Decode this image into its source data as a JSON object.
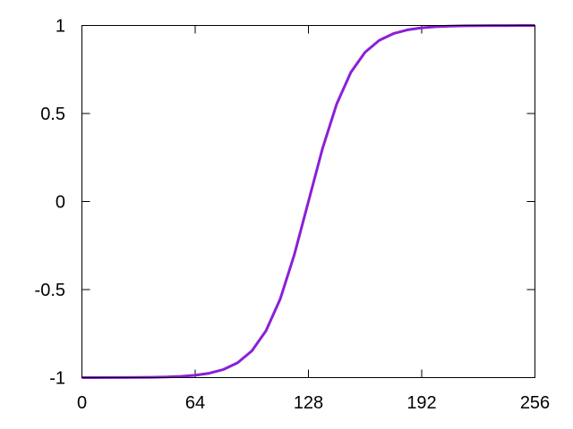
{
  "chart_data": {
    "type": "line",
    "title": "",
    "xlabel": "",
    "ylabel": "",
    "xlim": [
      0,
      256
    ],
    "ylim": [
      -1,
      1
    ],
    "grid": false,
    "xticks": [
      "0",
      "64",
      "128",
      "192",
      "256"
    ],
    "yticks": [
      "-1",
      "-0.5",
      "0",
      "0.5",
      "1"
    ],
    "xtick_values": [
      0,
      64,
      128,
      192,
      256
    ],
    "ytick_values": [
      -1,
      -0.5,
      0,
      0.5,
      1
    ],
    "series": [
      {
        "color": "#8b1fd6",
        "x": [
          0,
          8,
          16,
          24,
          32,
          40,
          48,
          56,
          64,
          72,
          80,
          88,
          96,
          104,
          112,
          120,
          128,
          136,
          144,
          152,
          160,
          168,
          176,
          184,
          192,
          200,
          208,
          216,
          224,
          232,
          240,
          248,
          256
        ],
        "y": [
          -0.9999,
          -0.9998,
          -0.9997,
          -0.9994,
          -0.9989,
          -0.9979,
          -0.9962,
          -0.9928,
          -0.9866,
          -0.975,
          -0.9539,
          -0.9159,
          -0.8483,
          -0.7342,
          -0.5546,
          -0.3027,
          0,
          0.3027,
          0.5546,
          0.7342,
          0.8483,
          0.9159,
          0.9539,
          0.975,
          0.9866,
          0.9928,
          0.9962,
          0.9979,
          0.9989,
          0.9994,
          0.9997,
          0.9998,
          0.9999
        ]
      }
    ]
  }
}
